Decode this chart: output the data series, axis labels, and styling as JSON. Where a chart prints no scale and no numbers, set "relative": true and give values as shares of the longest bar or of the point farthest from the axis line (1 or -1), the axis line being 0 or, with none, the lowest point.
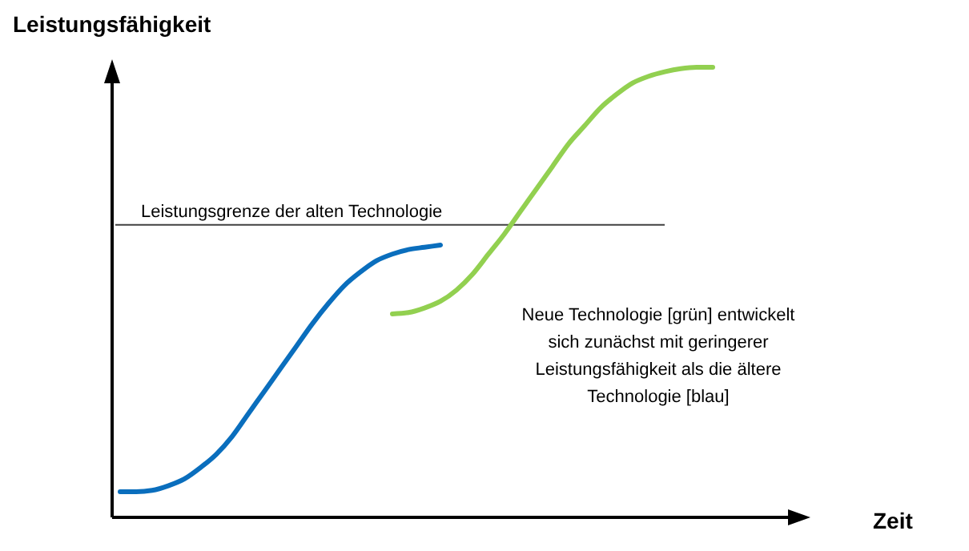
{
  "chart_data": {
    "type": "line",
    "relative": true,
    "xlabel": "Zeit",
    "ylabel": "Leistungsfähigkeit",
    "categories": [
      null,
      null,
      null,
      null,
      null,
      null,
      null,
      null,
      null,
      null,
      null,
      null,
      null,
      null,
      null,
      null,
      null,
      null,
      null,
      null,
      null,
      null,
      null,
      null,
      null,
      null,
      null,
      null,
      null,
      null,
      null,
      null,
      null,
      null,
      null,
      null,
      null,
      null,
      null,
      null,
      null,
      null,
      null
    ],
    "series": [
      {
        "color": "#0a6ebd",
        "values": [
          0.057,
          0.057,
          0.06,
          0.07,
          0.085,
          0.11,
          0.14,
          0.18,
          0.23,
          0.28,
          0.33,
          0.38,
          0.43,
          0.475,
          0.515,
          0.545,
          0.57,
          0.585,
          0.595,
          0.6,
          0.605,
          null,
          null,
          null,
          null,
          null,
          null,
          null,
          null,
          null,
          null,
          null,
          null,
          null,
          null,
          null,
          null,
          null,
          null,
          null,
          null,
          null,
          null
        ]
      },
      {
        "color": "#92d050",
        "values": [
          null,
          null,
          null,
          null,
          null,
          null,
          null,
          null,
          null,
          null,
          null,
          null,
          null,
          null,
          null,
          null,
          null,
          0.452,
          0.455,
          0.465,
          0.48,
          0.505,
          0.54,
          0.585,
          0.63,
          0.68,
          0.73,
          0.78,
          0.83,
          0.87,
          0.91,
          0.94,
          0.965,
          0.98,
          0.99,
          0.997,
          1.0,
          1.0,
          null,
          null,
          null,
          null,
          null
        ]
      }
    ],
    "ref_lines": [
      {
        "axis": "y",
        "value": 0.65,
        "label": "Leistungsgrenze der alten Technologie",
        "color": "#404040"
      }
    ],
    "annotations": [
      "Neue Technologie [grün] entwickelt sich zunächst mit geringerer Leistungsfähigkeit als die ältere Technologie [blau]"
    ],
    "marker": "none",
    "line_style": "solid"
  }
}
